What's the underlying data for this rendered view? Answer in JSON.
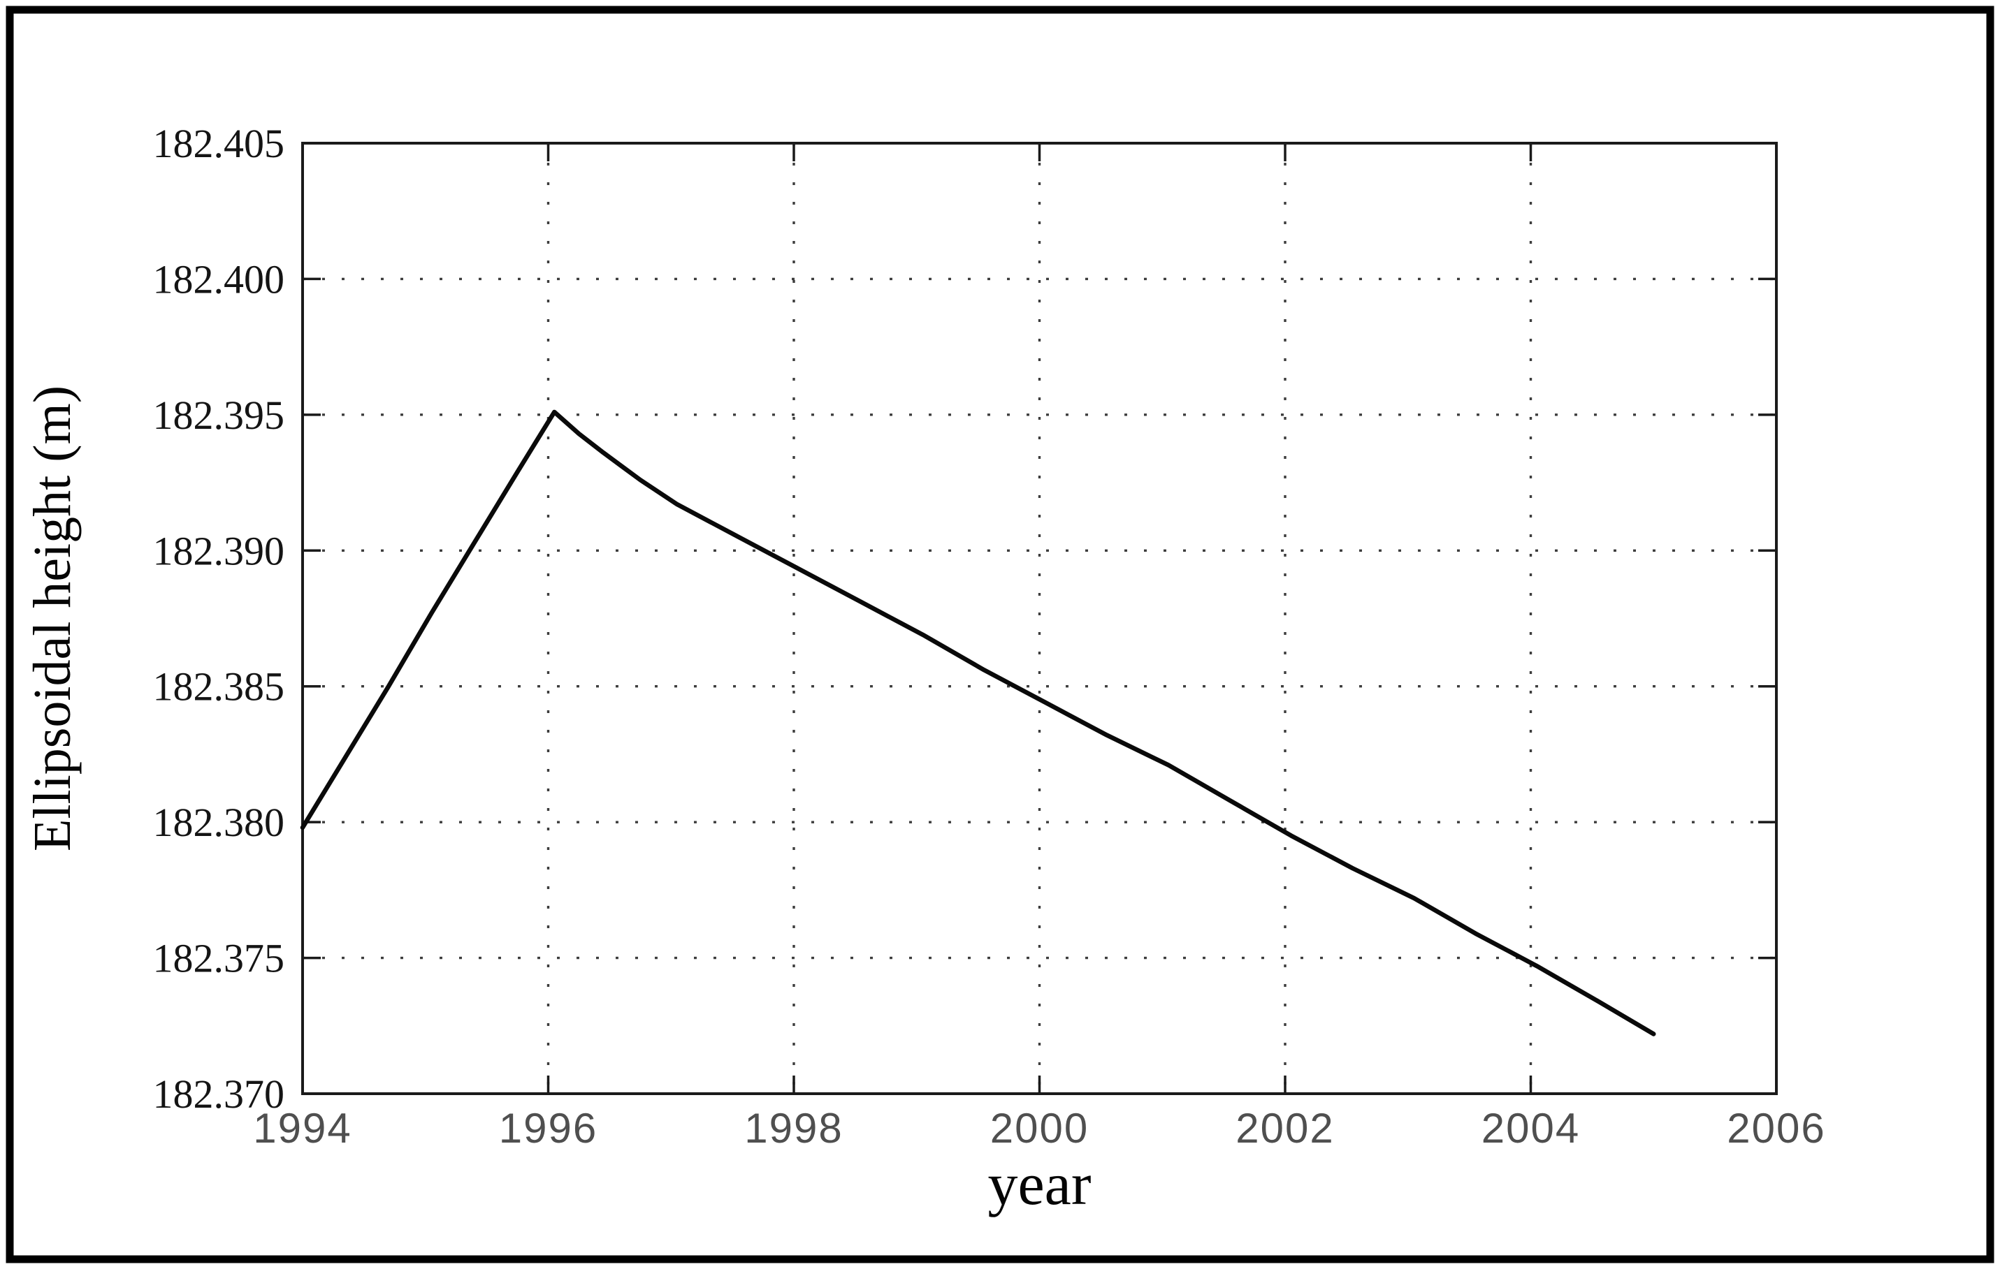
{
  "figure": {
    "background": "#ffffff",
    "outer_border_color": "#000000"
  },
  "chart_data": {
    "type": "line",
    "title": "",
    "xlabel": "year",
    "ylabel": "Ellipsoidal height (m)",
    "xlim": [
      1994,
      2006
    ],
    "ylim": [
      182.37,
      182.405
    ],
    "x_ticks": [
      "1994",
      "1996",
      "1998",
      "2000",
      "2002",
      "2004",
      "2006"
    ],
    "y_ticks": [
      "182.370",
      "182.375",
      "182.380",
      "182.385",
      "182.390",
      "182.395",
      "182.400",
      "182.405"
    ],
    "grid": "dotted",
    "legend": "none",
    "series": [
      {
        "name": "ellipsoidal-height",
        "x": [
          1994.0,
          1994.35,
          1994.7,
          1995.05,
          1995.4,
          1995.75,
          1996.05,
          1996.25,
          1996.45,
          1996.75,
          1997.05,
          1997.55,
          1998.05,
          1998.55,
          1999.05,
          1999.55,
          2000.05,
          2000.55,
          2001.05,
          2001.55,
          2002.05,
          2002.55,
          2003.05,
          2003.55,
          2004.05,
          2004.55,
          2005.0
        ],
        "y": [
          182.3798,
          182.3824,
          182.385,
          182.3877,
          182.3903,
          182.3929,
          182.3951,
          182.3943,
          182.3936,
          182.3926,
          182.3917,
          182.3905,
          182.3893,
          182.3881,
          182.3869,
          182.3856,
          182.3844,
          182.3832,
          182.3821,
          182.3808,
          182.3795,
          182.3783,
          182.3772,
          182.3759,
          182.3747,
          182.3734,
          182.3722
        ]
      }
    ],
    "style": {
      "axis_color": "#1a1a1a",
      "grid_color": "#3d3d3d",
      "x_tick_label_color": "#4f4f4f",
      "y_tick_label_color": "#141414",
      "axis_title_color": "#050505",
      "line_color": "#0a0a0a"
    }
  }
}
